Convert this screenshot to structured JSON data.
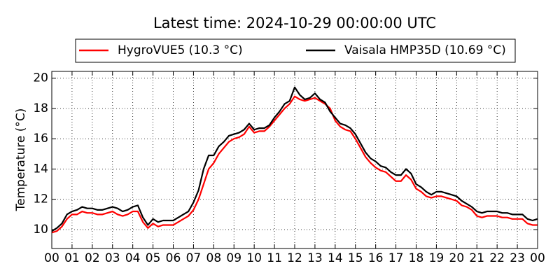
{
  "chart_data": {
    "type": "line",
    "title": "Latest time: 2024-10-29 00:00:00 UTC",
    "ylabel": "Temperature (°C)",
    "x": [
      0,
      0.25,
      0.5,
      0.75,
      1,
      1.25,
      1.5,
      1.75,
      2,
      2.25,
      2.5,
      2.75,
      3,
      3.25,
      3.5,
      3.75,
      4,
      4.25,
      4.5,
      4.75,
      5,
      5.25,
      5.5,
      5.75,
      6,
      6.25,
      6.5,
      6.75,
      7,
      7.25,
      7.5,
      7.75,
      8,
      8.25,
      8.5,
      8.75,
      9,
      9.25,
      9.5,
      9.75,
      10,
      10.25,
      10.5,
      10.75,
      11,
      11.25,
      11.5,
      11.75,
      12,
      12.25,
      12.5,
      12.75,
      13,
      13.25,
      13.5,
      13.75,
      14,
      14.25,
      14.5,
      14.75,
      15,
      15.25,
      15.5,
      15.75,
      16,
      16.25,
      16.5,
      16.75,
      17,
      17.25,
      17.5,
      17.75,
      18,
      18.25,
      18.5,
      18.75,
      19,
      19.25,
      19.5,
      19.75,
      20,
      20.25,
      20.5,
      20.75,
      21,
      21.25,
      21.5,
      21.75,
      22,
      22.25,
      22.5,
      22.75,
      23,
      23.25,
      23.5,
      23.75,
      24
    ],
    "series": [
      {
        "name": "HygroVUE5 (10.3 °C)",
        "color": "#ff0000",
        "values": [
          9.8,
          9.9,
          10.2,
          10.7,
          11.0,
          11.0,
          11.2,
          11.1,
          11.1,
          11.0,
          11.0,
          11.1,
          11.2,
          11.0,
          10.9,
          11.0,
          11.2,
          11.2,
          10.5,
          10.1,
          10.4,
          10.2,
          10.3,
          10.3,
          10.3,
          10.5,
          10.7,
          10.9,
          11.3,
          12.0,
          13.0,
          14.0,
          14.4,
          15.0,
          15.4,
          15.8,
          16.0,
          16.1,
          16.3,
          16.8,
          16.4,
          16.5,
          16.5,
          16.8,
          17.2,
          17.6,
          18.0,
          18.3,
          18.8,
          18.6,
          18.5,
          18.6,
          18.7,
          18.5,
          18.3,
          18.0,
          17.2,
          16.8,
          16.6,
          16.5,
          16.0,
          15.4,
          14.8,
          14.4,
          14.1,
          13.9,
          13.8,
          13.5,
          13.2,
          13.2,
          13.6,
          13.3,
          12.7,
          12.5,
          12.2,
          12.1,
          12.2,
          12.2,
          12.1,
          12.0,
          11.9,
          11.6,
          11.5,
          11.3,
          10.9,
          10.8,
          10.9,
          10.9,
          10.9,
          10.8,
          10.8,
          10.7,
          10.7,
          10.7,
          10.4,
          10.3,
          10.3
        ]
      },
      {
        "name": "Vaisala HMP35D (10.69 °C)",
        "color": "#000000",
        "values": [
          9.9,
          10.1,
          10.4,
          11.0,
          11.2,
          11.3,
          11.5,
          11.4,
          11.4,
          11.3,
          11.3,
          11.4,
          11.5,
          11.4,
          11.2,
          11.3,
          11.5,
          11.6,
          10.8,
          10.3,
          10.7,
          10.5,
          10.6,
          10.6,
          10.6,
          10.8,
          11.0,
          11.2,
          11.8,
          12.6,
          14.0,
          14.9,
          14.9,
          15.5,
          15.8,
          16.2,
          16.3,
          16.4,
          16.6,
          17.0,
          16.6,
          16.7,
          16.7,
          16.9,
          17.4,
          17.8,
          18.3,
          18.5,
          19.4,
          18.9,
          18.6,
          18.7,
          19.0,
          18.6,
          18.4,
          17.8,
          17.4,
          17.0,
          16.9,
          16.7,
          16.3,
          15.7,
          15.1,
          14.7,
          14.5,
          14.2,
          14.1,
          13.8,
          13.6,
          13.6,
          14.0,
          13.7,
          13.0,
          12.8,
          12.5,
          12.3,
          12.5,
          12.5,
          12.4,
          12.3,
          12.2,
          11.9,
          11.7,
          11.5,
          11.2,
          11.1,
          11.2,
          11.2,
          11.2,
          11.1,
          11.1,
          11.0,
          11.0,
          11.0,
          10.7,
          10.6,
          10.7
        ]
      }
    ],
    "xlim": [
      0,
      24
    ],
    "xticks": [
      {
        "value": 0,
        "label": "00"
      },
      {
        "value": 1,
        "label": "01"
      },
      {
        "value": 2,
        "label": "02"
      },
      {
        "value": 3,
        "label": "03"
      },
      {
        "value": 4,
        "label": "04"
      },
      {
        "value": 5,
        "label": "05"
      },
      {
        "value": 6,
        "label": "06"
      },
      {
        "value": 7,
        "label": "07"
      },
      {
        "value": 8,
        "label": "08"
      },
      {
        "value": 9,
        "label": "09"
      },
      {
        "value": 10,
        "label": "10"
      },
      {
        "value": 11,
        "label": "11"
      },
      {
        "value": 12,
        "label": "12"
      },
      {
        "value": 13,
        "label": "13"
      },
      {
        "value": 14,
        "label": "14"
      },
      {
        "value": 15,
        "label": "15"
      },
      {
        "value": 16,
        "label": "16"
      },
      {
        "value": 17,
        "label": "17"
      },
      {
        "value": 18,
        "label": "18"
      },
      {
        "value": 19,
        "label": "19"
      },
      {
        "value": 20,
        "label": "20"
      },
      {
        "value": 21,
        "label": "21"
      },
      {
        "value": 22,
        "label": "22"
      },
      {
        "value": 23,
        "label": "23"
      },
      {
        "value": 24,
        "label": "00"
      }
    ],
    "ylim": [
      8.75,
      20.45
    ],
    "yticks": [
      10,
      12,
      14,
      16,
      18,
      20
    ],
    "grid": true,
    "legend": "top"
  }
}
